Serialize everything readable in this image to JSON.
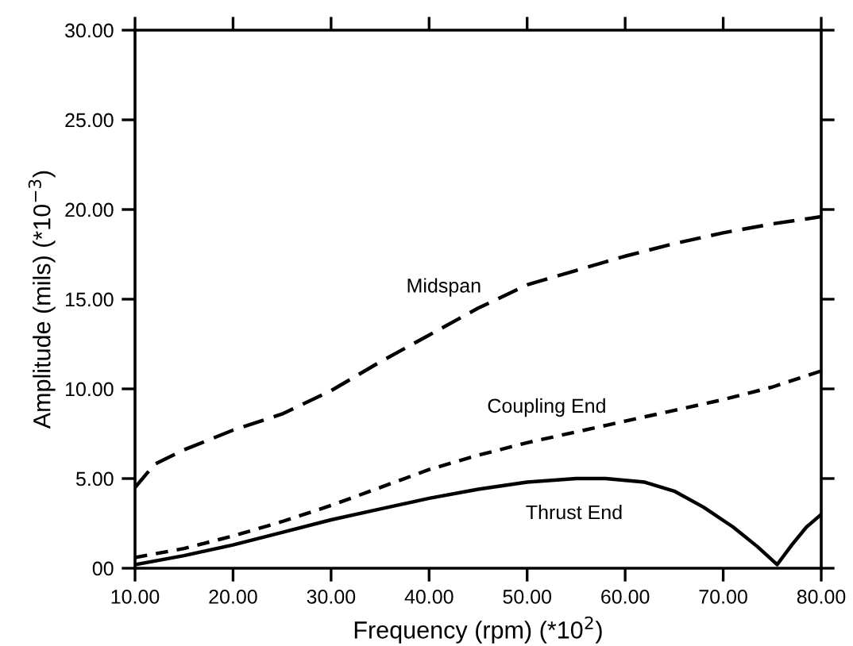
{
  "chart_data": {
    "type": "line",
    "xlabel": "Frequency (rpm) (*10$^{2}$)",
    "ylabel": "Amplitude (mils) (*10$^{−3}$)",
    "xlim": [
      10,
      80
    ],
    "xticks": [
      {
        "value": 10,
        "label": "10.00"
      },
      {
        "value": 20,
        "label": "20.00"
      },
      {
        "value": 30,
        "label": "30.00"
      },
      {
        "value": 40,
        "label": "40.00"
      },
      {
        "value": 50,
        "label": "50.00"
      },
      {
        "value": 60,
        "label": "60.00"
      },
      {
        "value": 70,
        "label": "70.00"
      },
      {
        "value": 80,
        "label": "80.00"
      }
    ],
    "ylim": [
      0,
      30
    ],
    "yticks": [
      {
        "value": 0,
        "label": "00"
      },
      {
        "value": 5,
        "label": "5.00"
      },
      {
        "value": 10,
        "label": "10.00"
      },
      {
        "value": 15,
        "label": "15.00"
      },
      {
        "value": 20,
        "label": "20.00"
      },
      {
        "value": 25,
        "label": "25.00"
      },
      {
        "value": 30,
        "label": "30.00"
      }
    ],
    "grid": false,
    "legend": false,
    "marker": "none",
    "series": [
      {
        "name": "Midspan",
        "color": "#000000",
        "line_style": "dashed",
        "x": [
          10,
          12,
          15,
          20,
          25,
          30,
          35,
          40,
          45,
          50,
          55,
          60,
          65,
          70,
          75,
          80
        ],
        "values": [
          4.5,
          5.8,
          6.6,
          7.7,
          8.6,
          9.9,
          11.5,
          13.0,
          14.5,
          15.8,
          16.6,
          17.4,
          18.1,
          18.7,
          19.2,
          19.6
        ]
      },
      {
        "name": "Coupling End",
        "color": "#000000",
        "line_style": "dashed",
        "x": [
          10,
          15,
          20,
          25,
          30,
          35,
          40,
          45,
          50,
          55,
          60,
          65,
          70,
          75,
          80
        ],
        "values": [
          0.6,
          1.1,
          1.8,
          2.6,
          3.5,
          4.5,
          5.5,
          6.3,
          7.0,
          7.6,
          8.2,
          8.8,
          9.4,
          10.1,
          11.0
        ]
      },
      {
        "name": "Thrust End",
        "color": "#000000",
        "line_style": "solid",
        "x": [
          10,
          15,
          20,
          25,
          30,
          35,
          40,
          45,
          50,
          55,
          58,
          62,
          65,
          68,
          71,
          73.5,
          75.5,
          77,
          78.5,
          80
        ],
        "values": [
          0.2,
          0.7,
          1.3,
          2.0,
          2.7,
          3.3,
          3.9,
          4.4,
          4.8,
          5.0,
          5.0,
          4.8,
          4.3,
          3.4,
          2.3,
          1.2,
          0.2,
          1.3,
          2.3,
          3.0
        ]
      }
    ]
  }
}
